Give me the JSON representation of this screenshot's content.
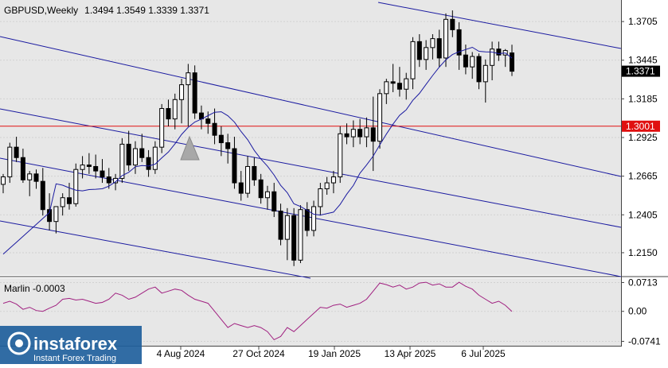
{
  "chart_data": [
    {
      "type": "candlestick",
      "title": "GBPUSD,Weekly",
      "ohlc_label": "1.3494 1.3549 1.3339 1.3371",
      "y_ticks": [
        "1.3705",
        "1.3445",
        "1.3185",
        "1.2925",
        "1.2665",
        "1.2405",
        "1.2150"
      ],
      "x_ticks": [
        "4 Aug 2024",
        "27 Oct 2024",
        "19 Jan 2025",
        "13 Apr 2025",
        "6 Jul 2025"
      ],
      "ylim": [
        1.2,
        1.385
      ],
      "horizontal_level": {
        "value": 1.3001,
        "label": "1.3001",
        "color": "#e01010"
      },
      "current_price": {
        "value": 1.3371,
        "label": "1.3371"
      },
      "moving_average": {
        "color": "#1a1aa0"
      },
      "candles": [
        [
          1.261,
          1.268,
          1.255,
          1.266
        ],
        [
          1.266,
          1.289,
          1.262,
          1.286
        ],
        [
          1.286,
          1.293,
          1.276,
          1.279
        ],
        [
          1.279,
          1.285,
          1.262,
          1.264
        ],
        [
          1.264,
          1.27,
          1.253,
          1.268
        ],
        [
          1.268,
          1.271,
          1.258,
          1.263
        ],
        [
          1.263,
          1.272,
          1.24,
          1.244
        ],
        [
          1.244,
          1.255,
          1.23,
          1.236
        ],
        [
          1.236,
          1.246,
          1.228,
          1.246
        ],
        [
          1.246,
          1.255,
          1.24,
          1.252
        ],
        [
          1.252,
          1.262,
          1.244,
          1.248
        ],
        [
          1.248,
          1.275,
          1.246,
          1.271
        ],
        [
          1.271,
          1.28,
          1.265,
          1.274
        ],
        [
          1.274,
          1.282,
          1.268,
          1.273
        ],
        [
          1.273,
          1.281,
          1.265,
          1.27
        ],
        [
          1.27,
          1.278,
          1.262,
          1.266
        ],
        [
          1.266,
          1.272,
          1.258,
          1.262
        ],
        [
          1.262,
          1.268,
          1.257,
          1.265
        ],
        [
          1.265,
          1.292,
          1.262,
          1.288
        ],
        [
          1.288,
          1.297,
          1.27,
          1.274
        ],
        [
          1.274,
          1.29,
          1.268,
          1.285
        ],
        [
          1.285,
          1.295,
          1.276,
          1.279
        ],
        [
          1.279,
          1.284,
          1.266,
          1.271
        ],
        [
          1.271,
          1.29,
          1.268,
          1.286
        ],
        [
          1.286,
          1.315,
          1.282,
          1.312
        ],
        [
          1.312,
          1.318,
          1.3,
          1.305
        ],
        [
          1.305,
          1.322,
          1.298,
          1.318
        ],
        [
          1.318,
          1.332,
          1.302,
          1.328
        ],
        [
          1.328,
          1.342,
          1.3,
          1.336
        ],
        [
          1.336,
          1.341,
          1.305,
          1.309
        ],
        [
          1.309,
          1.314,
          1.298,
          1.305
        ],
        [
          1.305,
          1.31,
          1.295,
          1.302
        ],
        [
          1.302,
          1.312,
          1.288,
          1.294
        ],
        [
          1.294,
          1.3,
          1.28,
          1.289
        ],
        [
          1.289,
          1.295,
          1.275,
          1.285
        ],
        [
          1.285,
          1.293,
          1.258,
          1.262
        ],
        [
          1.262,
          1.27,
          1.25,
          1.255
        ],
        [
          1.255,
          1.28,
          1.252,
          1.273
        ],
        [
          1.273,
          1.279,
          1.26,
          1.264
        ],
        [
          1.264,
          1.268,
          1.248,
          1.252
        ],
        [
          1.252,
          1.26,
          1.244,
          1.256
        ],
        [
          1.256,
          1.262,
          1.239,
          1.243
        ],
        [
          1.243,
          1.248,
          1.22,
          1.224
        ],
        [
          1.224,
          1.245,
          1.21,
          1.24
        ],
        [
          1.24,
          1.245,
          1.206,
          1.21
        ],
        [
          1.21,
          1.247,
          1.208,
          1.244
        ],
        [
          1.244,
          1.249,
          1.226,
          1.23
        ],
        [
          1.23,
          1.25,
          1.226,
          1.246
        ],
        [
          1.246,
          1.262,
          1.24,
          1.258
        ],
        [
          1.258,
          1.266,
          1.254,
          1.262
        ],
        [
          1.262,
          1.27,
          1.255,
          1.266
        ],
        [
          1.266,
          1.3,
          1.262,
          1.295
        ],
        [
          1.295,
          1.302,
          1.288,
          1.293
        ],
        [
          1.293,
          1.304,
          1.286,
          1.298
        ],
        [
          1.298,
          1.305,
          1.288,
          1.293
        ],
        [
          1.293,
          1.306,
          1.286,
          1.299
        ],
        [
          1.299,
          1.32,
          1.27,
          1.29
        ],
        [
          1.29,
          1.325,
          1.285,
          1.322
        ],
        [
          1.322,
          1.332,
          1.315,
          1.33
        ],
        [
          1.33,
          1.342,
          1.323,
          1.329
        ],
        [
          1.329,
          1.34,
          1.32,
          1.325
        ],
        [
          1.325,
          1.336,
          1.318,
          1.332
        ],
        [
          1.332,
          1.36,
          1.325,
          1.357
        ],
        [
          1.357,
          1.362,
          1.34,
          1.345
        ],
        [
          1.345,
          1.358,
          1.338,
          1.353
        ],
        [
          1.353,
          1.362,
          1.345,
          1.359
        ],
        [
          1.359,
          1.365,
          1.34,
          1.346
        ],
        [
          1.346,
          1.376,
          1.34,
          1.372
        ],
        [
          1.372,
          1.378,
          1.36,
          1.365
        ],
        [
          1.365,
          1.37,
          1.338,
          1.348
        ],
        [
          1.348,
          1.355,
          1.335,
          1.34
        ],
        [
          1.34,
          1.35,
          1.332,
          1.347
        ],
        [
          1.347,
          1.349,
          1.325,
          1.33
        ],
        [
          1.33,
          1.345,
          1.316,
          1.341
        ],
        [
          1.341,
          1.357,
          1.331,
          1.352
        ],
        [
          1.352,
          1.357,
          1.344,
          1.348
        ],
        [
          1.348,
          1.352,
          1.34,
          1.351
        ],
        [
          1.3494,
          1.3549,
          1.3339,
          1.3371
        ]
      ]
    },
    {
      "type": "line",
      "title": "Marlin -0.0003",
      "y_ticks": [
        "0.0713",
        "0.00",
        "-0.0741"
      ],
      "ylim": [
        -0.085,
        0.082
      ],
      "series": [
        {
          "color": "#a02080",
          "values": [
            0.02,
            0.025,
            0.018,
            0.005,
            0.01,
            0.002,
            0.0,
            0.008,
            0.015,
            0.03,
            0.032,
            0.028,
            0.03,
            0.025,
            0.02,
            0.022,
            0.03,
            0.045,
            0.04,
            0.03,
            0.035,
            0.045,
            0.055,
            0.06,
            0.045,
            0.05,
            0.055,
            0.052,
            0.04,
            0.03,
            0.025,
            0.02,
            0.0,
            -0.02,
            -0.04,
            -0.03,
            -0.035,
            -0.04,
            -0.035,
            -0.04,
            -0.05,
            -0.07,
            -0.062,
            -0.04,
            -0.05,
            -0.035,
            -0.02,
            -0.005,
            0.01,
            0.008,
            0.015,
            0.018,
            0.01,
            0.015,
            0.02,
            0.03,
            0.05,
            0.07,
            0.066,
            0.06,
            0.065,
            0.055,
            0.06,
            0.07,
            0.072,
            0.065,
            0.068,
            0.06,
            0.06,
            0.072,
            0.062,
            0.055,
            0.04,
            0.03,
            0.02,
            0.025,
            0.015,
            -0.0003
          ]
        }
      ]
    }
  ],
  "watermark": {
    "brand": "instaforex",
    "tagline": "Instant Forex Trading"
  }
}
